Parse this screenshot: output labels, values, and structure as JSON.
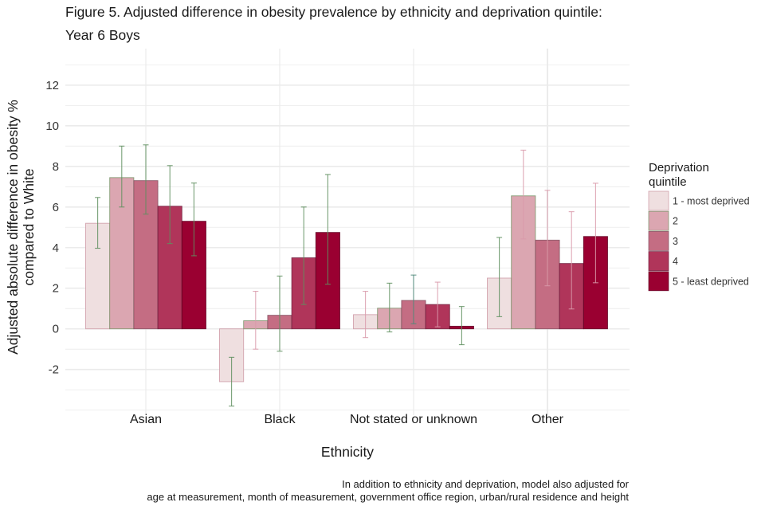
{
  "chart_data": {
    "type": "bar",
    "title": "Figure 5. Adjusted difference in obesity prevalence by ethnicity and deprivation quintile:",
    "subtitle": "Year 6 Boys",
    "xlabel": "Ethnicity",
    "ylabel_line1": "Adjusted absolute difference in obesity %",
    "ylabel_line2": "compared to White",
    "ylim": [
      -4.25,
      13.8
    ],
    "yticks": [
      -2,
      0,
      2,
      4,
      6,
      8,
      10,
      12
    ],
    "ytick_labels": [
      "-2",
      "0",
      "2",
      "4",
      "6",
      "8",
      "10",
      "12"
    ],
    "grid": true,
    "categories": [
      "Asian",
      "Black",
      "Not stated or unknown",
      "Other"
    ],
    "legend": {
      "title_line1": "Deprivation",
      "title_line2": "quintile",
      "placement": "right"
    },
    "series": [
      {
        "name": "1 - most deprived",
        "color": "#efdfe0",
        "values": [
          5.2,
          -2.6,
          0.7,
          2.5
        ],
        "ci_low": [
          3.97,
          -3.8,
          -0.43,
          0.6
        ],
        "ci_high": [
          6.47,
          -1.4,
          1.85,
          4.5
        ],
        "err_colors": [
          "#5f8f5f",
          "#5f8f5f",
          "#d99aaa",
          "#5f8f5f"
        ]
      },
      {
        "name": "2",
        "color": "#dba6b1",
        "values": [
          7.45,
          0.4,
          1.02,
          6.55
        ],
        "ci_low": [
          6.0,
          -1.0,
          -0.15,
          4.43
        ],
        "ci_high": [
          9.0,
          1.85,
          2.25,
          8.8
        ],
        "err_colors": [
          "#5f8f5f",
          "#d99aaa",
          "#5f8f5f",
          "#d99aaa"
        ]
      },
      {
        "name": "3",
        "color": "#c46d83",
        "values": [
          7.3,
          0.67,
          1.4,
          4.37
        ],
        "ci_low": [
          5.65,
          -1.1,
          0.25,
          2.12
        ],
        "ci_high": [
          9.06,
          2.6,
          2.65,
          6.82
        ],
        "err_colors": [
          "#5f8f5f",
          "#5f8f5f",
          "#4f8a7a",
          "#d99aaa"
        ]
      },
      {
        "name": "4",
        "color": "#b0355a",
        "values": [
          6.04,
          3.5,
          1.2,
          3.22
        ],
        "ci_low": [
          4.2,
          1.2,
          0.1,
          0.98
        ],
        "ci_high": [
          8.04,
          6.0,
          2.3,
          5.77
        ],
        "err_colors": [
          "#5f8f5f",
          "#5f8f5f",
          "#d99aaa",
          "#d99aaa"
        ]
      },
      {
        "name": "5 - least deprived",
        "color": "#9a0031",
        "values": [
          5.3,
          4.75,
          0.13,
          4.55
        ],
        "ci_low": [
          3.6,
          2.2,
          -0.78,
          2.27
        ],
        "ci_high": [
          7.18,
          7.6,
          1.1,
          7.17
        ],
        "err_colors": [
          "#5f8f5f",
          "#5f8f5f",
          "#5f8f5f",
          "#d99aaa"
        ]
      }
    ],
    "caption_line1": "In addition to ethnicity and deprivation, model also adjusted for",
    "caption_line2": "age at measurement, month of measurement, government office region, urban/rural residence and height"
  }
}
